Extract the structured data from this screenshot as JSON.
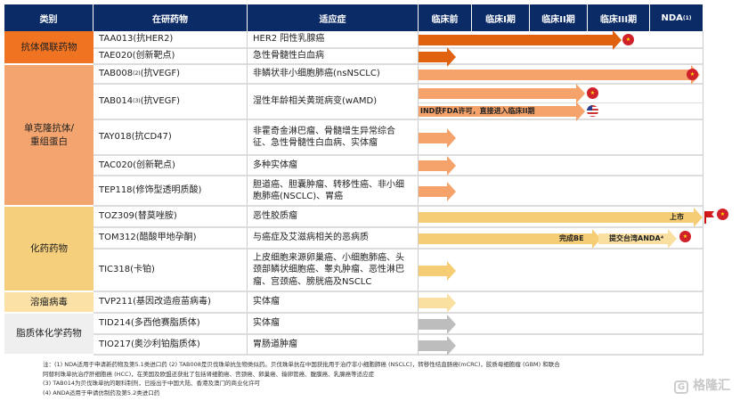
{
  "header": {
    "category": "类别",
    "drug": "在研药物",
    "indication": "适应症",
    "stages": [
      "临床前",
      "临床I期",
      "临床II期",
      "临床III期",
      "NDA"
    ],
    "nda_sup": "(1)"
  },
  "categories": [
    {
      "label": "抗体偶联药物",
      "color": "#f07322"
    },
    {
      "label": "单克隆抗体/\n重组蛋白",
      "color": "#f4a56f"
    },
    {
      "label": "化药药物",
      "color": "#f5cf7b"
    },
    {
      "label": "溶瘤病毒",
      "color": "#fbe1a6"
    },
    {
      "label": "脂质体化学药物",
      "color": "#efefef"
    }
  ],
  "rows": [
    {
      "drug": "TAA013(抗HER2)",
      "indication": "HER2 阳性乳腺癌"
    },
    {
      "drug": "TAE020(创新靶点)",
      "indication": "急性骨髓性白血病"
    },
    {
      "drug_pre": "TAB008",
      "drug_sup": "(2)",
      "drug_post": "(抗VEGF)",
      "indication": "非鳞状非小细胞肺癌(nsNSCLC)"
    },
    {
      "drug_pre": "TAB014",
      "drug_sup": "(3)",
      "drug_post": "(抗VEGF)",
      "indication": "湿性年龄相关黄斑病变(wAMD)"
    },
    {
      "drug": "TAY018(抗CD47)",
      "indication": "非霍奇金淋巴瘤、骨髓增生异常综合征、急性骨髓性白血病、实体瘤"
    },
    {
      "drug": "TAC020(创新靶点)",
      "indication": "多种实体瘤"
    },
    {
      "drug": "TEP118(修饰型透明质酸)",
      "indication": "胆道癌、胆囊肿瘤、转移性癌、非小细胞肺癌(NSCLC)、胃癌"
    },
    {
      "drug": "TOZ309(替莫唑胺)",
      "indication": "恶性胶质瘤"
    },
    {
      "drug": "TOM312(醋酸甲地孕酮)",
      "indication": "与癌症及艾滋病相关的恶病质"
    },
    {
      "drug": "TIC318(卡铂)",
      "indication": "上皮细胞来源卵巢癌、小细胞肺癌、头颈部鳞状细胞癌、睾丸肿瘤、恶性淋巴瘤、宫颈癌、膀胱癌及NSCLC"
    },
    {
      "drug": "TVP211(基因改造痘苗病毒)",
      "indication": "实体瘤"
    },
    {
      "drug": "TID214(多西他赛脂质体)",
      "indication": "实体瘤"
    },
    {
      "drug": "TIO217(奥沙利铂脂质体)",
      "indication": "胃肠道肿瘤"
    }
  ],
  "progress_notes": {
    "tab014_us": "IND获FDA许可，直接进入临床II期",
    "toz309": "上市",
    "tom312_be": "完成BE",
    "tom312_anda": "提交台湾ANDA⁴"
  },
  "flags": {
    "cn": "china-flag",
    "us": "us-flag"
  },
  "notes": [
    "注：(1) NDA适用于申请新药物及第5.1类进口药  (2) TAB008是贝伐珠单抗生物类似药。贝伐珠单抗在中国获批用于治疗非小细胞肺癌 (NSCLC)，转移性结直肠癌(mCRC)，胶质母细胞瘤 (GBM) 和联合",
    "阿替利珠单抗治疗肝细胞癌 (HCC)，在美国及欧盟还获批了包括肾细胞癌、宫颈癌、卵巢癌、输卵管癌、腹膜癌、乳腺癌等适应症",
    "(3) TAB014为贝伐珠单抗的眼科制剂，已授出于中国大陆、香港及澳门的商业化许可",
    "(4) ANDA适用于申请仿制药及第5.2类进口药"
  ],
  "watermark": "格隆汇"
}
